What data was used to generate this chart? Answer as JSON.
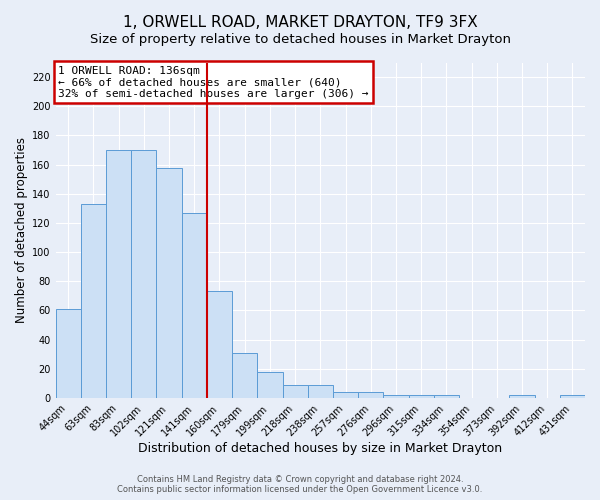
{
  "title": "1, ORWELL ROAD, MARKET DRAYTON, TF9 3FX",
  "subtitle": "Size of property relative to detached houses in Market Drayton",
  "xlabel": "Distribution of detached houses by size in Market Drayton",
  "ylabel": "Number of detached properties",
  "bar_labels": [
    "44sqm",
    "63sqm",
    "83sqm",
    "102sqm",
    "121sqm",
    "141sqm",
    "160sqm",
    "179sqm",
    "199sqm",
    "218sqm",
    "238sqm",
    "257sqm",
    "276sqm",
    "296sqm",
    "315sqm",
    "334sqm",
    "354sqm",
    "373sqm",
    "392sqm",
    "412sqm",
    "431sqm"
  ],
  "bar_heights": [
    61,
    133,
    170,
    170,
    158,
    127,
    73,
    31,
    18,
    9,
    9,
    4,
    4,
    2,
    2,
    2,
    0,
    0,
    2,
    0,
    2
  ],
  "bar_color": "#cce0f5",
  "bar_edge_color": "#5b9bd5",
  "ylim": [
    0,
    230
  ],
  "yticks": [
    0,
    20,
    40,
    60,
    80,
    100,
    120,
    140,
    160,
    180,
    200,
    220
  ],
  "red_line_index": 5,
  "annotation_title": "1 ORWELL ROAD: 136sqm",
  "annotation_line1": "← 66% of detached houses are smaller (640)",
  "annotation_line2": "32% of semi-detached houses are larger (306) →",
  "footer1": "Contains HM Land Registry data © Crown copyright and database right 2024.",
  "footer2": "Contains public sector information licensed under the Open Government Licence v3.0.",
  "bg_color": "#e8eef8",
  "plot_bg_color": "#e8eef8",
  "grid_color": "#ffffff",
  "title_fontsize": 11,
  "subtitle_fontsize": 9.5,
  "xlabel_fontsize": 9,
  "ylabel_fontsize": 8.5,
  "tick_fontsize": 7,
  "annotation_fontsize": 8,
  "annotation_box_edge_color": "#cc0000",
  "red_line_color": "#cc0000",
  "footer_fontsize": 6,
  "footer_color": "#555555"
}
